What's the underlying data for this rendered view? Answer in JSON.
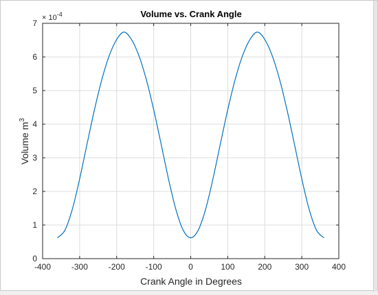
{
  "chart_data": {
    "type": "line",
    "title": "Volume vs. Crank Angle",
    "xlabel": "Crank Angle in Degrees",
    "ylabel": "Volume m",
    "ylabel_superscript": "3",
    "y_exponent_prefix": "× 10",
    "y_exponent": "-4",
    "xlim": [
      -400,
      400
    ],
    "ylim": [
      0,
      7
    ],
    "xticks": [
      -400,
      -300,
      -200,
      -100,
      0,
      100,
      200,
      300,
      400
    ],
    "yticks": [
      0,
      1,
      2,
      3,
      4,
      5,
      6,
      7
    ],
    "grid": true,
    "line_color": "#0072bd",
    "series": [
      {
        "x": [
          -360,
          -340,
          -320,
          -300,
          -280,
          -260,
          -240,
          -220,
          -200,
          -180,
          -160,
          -140,
          -120,
          -100,
          -80,
          -60,
          -40,
          -20,
          0,
          20,
          40,
          60,
          80,
          100,
          120,
          140,
          160,
          180,
          200,
          220,
          240,
          260,
          280,
          300,
          320,
          340,
          360
        ],
        "values": [
          0.62,
          0.84,
          1.46,
          2.37,
          3.41,
          4.43,
          5.33,
          6.04,
          6.52,
          6.74,
          6.52,
          6.04,
          5.33,
          4.43,
          3.41,
          2.37,
          1.46,
          0.84,
          0.62,
          0.84,
          1.46,
          2.37,
          3.41,
          4.43,
          5.33,
          6.04,
          6.52,
          6.74,
          6.52,
          6.04,
          5.33,
          4.43,
          3.41,
          2.37,
          1.46,
          0.84,
          0.62
        ]
      }
    ]
  }
}
